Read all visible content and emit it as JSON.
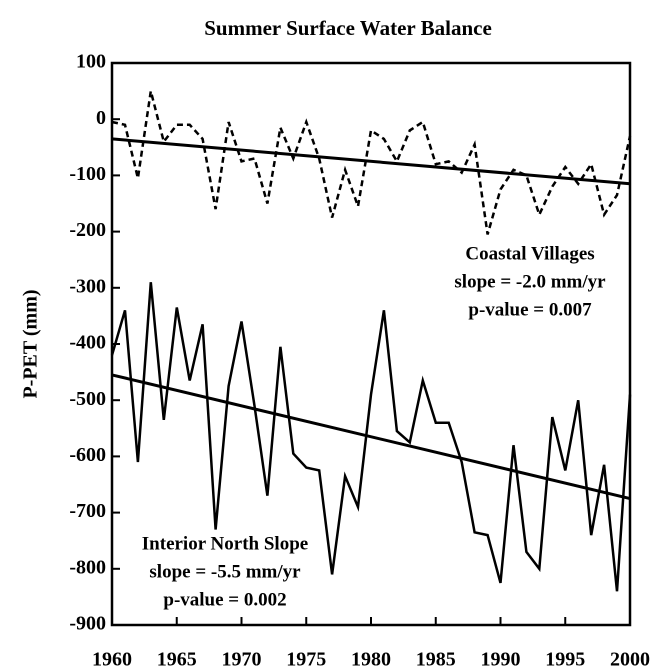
{
  "chart_data": {
    "type": "line",
    "title": "Summer Surface Water Balance",
    "y_label": "P-PET (mm)",
    "x": [
      1960,
      1961,
      1962,
      1963,
      1964,
      1965,
      1966,
      1967,
      1968,
      1969,
      1970,
      1971,
      1972,
      1973,
      1974,
      1975,
      1976,
      1977,
      1978,
      1979,
      1980,
      1981,
      1982,
      1983,
      1984,
      1985,
      1986,
      1987,
      1988,
      1989,
      1990,
      1991,
      1992,
      1993,
      1994,
      1995,
      1996,
      1997,
      1998,
      1999,
      2000
    ],
    "series": [
      {
        "color": "#000000",
        "dash": true,
        "values": [
          -5,
          -10,
          -105,
          50,
          -40,
          -10,
          -10,
          -35,
          -160,
          -5,
          -75,
          -70,
          -150,
          -15,
          -70,
          -5,
          -70,
          -175,
          -90,
          -155,
          -20,
          -35,
          -75,
          -20,
          -5,
          -80,
          -75,
          -95,
          -45,
          -205,
          -125,
          -90,
          -100,
          -170,
          -120,
          -85,
          -115,
          -80,
          -170,
          -135,
          -30
        ]
      },
      {
        "color": "#000000",
        "dash": false,
        "values": [
          -420,
          -340,
          -610,
          -290,
          -535,
          -335,
          -465,
          -365,
          -730,
          -475,
          -360,
          -510,
          -670,
          -405,
          -595,
          -620,
          -625,
          -810,
          -635,
          -690,
          -490,
          -340,
          -555,
          -575,
          -465,
          -540,
          -540,
          -610,
          -735,
          -740,
          -825,
          -580,
          -770,
          -800,
          -530,
          -625,
          -500,
          -740,
          -615,
          -840,
          -490
        ]
      }
    ],
    "trend_lines": [
      {
        "x": [
          1960,
          2000
        ],
        "values": [
          -35,
          -115
        ]
      },
      {
        "x": [
          1960,
          2000
        ],
        "values": [
          -455,
          -675
        ]
      }
    ],
    "annotations": [
      {
        "lines": [
          "Coastal Villages",
          "slope = -2.0 mm/yr",
          "p-value = 0.007"
        ]
      },
      {
        "lines": [
          "Interior North Slope",
          "slope = -5.5 mm/yr",
          "p-value = 0.002"
        ]
      }
    ],
    "xlim": [
      1960,
      2000
    ],
    "xticks": [
      1960,
      1965,
      1970,
      1975,
      1980,
      1985,
      1990,
      1995,
      2000
    ],
    "ylim": [
      -900,
      100
    ],
    "yticks": [
      100,
      0,
      -100,
      -200,
      -300,
      -400,
      -500,
      -600,
      -700,
      -800,
      -900
    ],
    "grid": false
  }
}
